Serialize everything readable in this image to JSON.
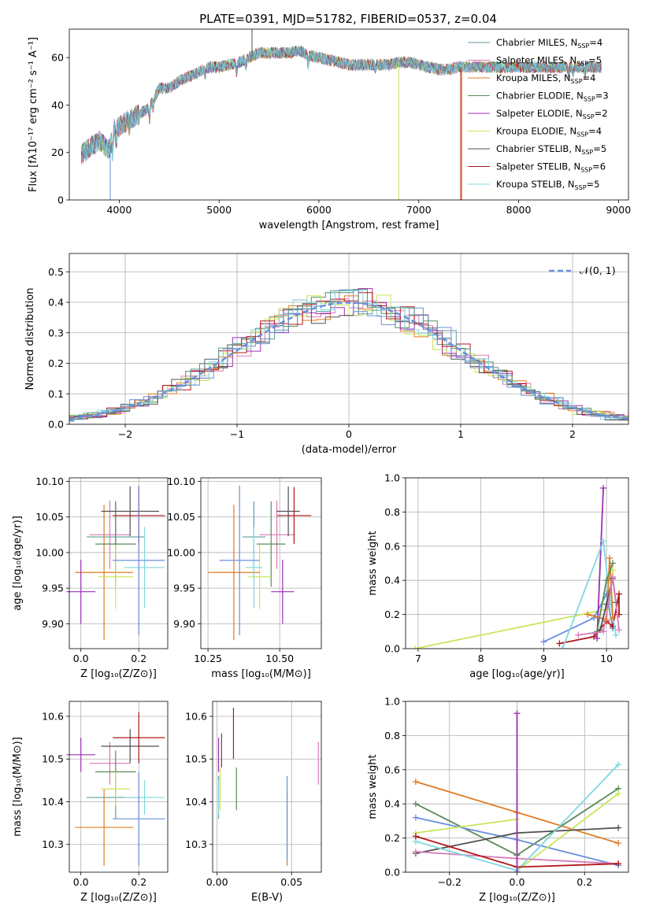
{
  "figure": {
    "title": "PLATE=0391, MJD=51782, FIBERID=0537, z=0.04"
  },
  "colors": [
    "#5f9ea0",
    "#d87ab8",
    "#e07b22",
    "#5a8a5a",
    "#9b30b5",
    "#c8e65a",
    "#505050",
    "#b01818",
    "#7fd8e0",
    "#6a8fdc"
  ],
  "chart_data": [
    {
      "id": "spectrum",
      "type": "line",
      "xlabel": "wavelength [Angstrom, rest frame]",
      "ylabel": "Flux [fλ10⁻¹⁷ erg cm⁻² s⁻¹ A⁻¹]",
      "xlim": [
        3500,
        9100
      ],
      "ylim": [
        0,
        72
      ],
      "xticks": [
        4000,
        5000,
        6000,
        7000,
        8000,
        9000
      ],
      "yticks": [
        0,
        20,
        40,
        60
      ],
      "legend_position": "top-right",
      "legend": [
        {
          "label": "Chabrier MILES, N",
          "sub": "SSP",
          "suffix": "=4",
          "color": "#5f9ea0"
        },
        {
          "label": "Salpeter MILES, N",
          "sub": "SSP",
          "suffix": "=5",
          "color": "#d87ab8"
        },
        {
          "label": "Kroupa MILES, N",
          "sub": "SSP",
          "suffix": "=4",
          "color": "#e07b22"
        },
        {
          "label": "Chabrier ELODIE, N",
          "sub": "SSP",
          "suffix": "=3",
          "color": "#5a8a5a"
        },
        {
          "label": "Salpeter ELODIE, N",
          "sub": "SSP",
          "suffix": "=2",
          "color": "#9b30b5"
        },
        {
          "label": "Kroupa ELODIE, N",
          "sub": "SSP",
          "suffix": "=4",
          "color": "#c8e65a"
        },
        {
          "label": "Chabrier STELIB, N",
          "sub": "SSP",
          "suffix": "=5",
          "color": "#505050"
        },
        {
          "label": "Salpeter STELIB, N",
          "sub": "SSP",
          "suffix": "=6",
          "color": "#b01818"
        },
        {
          "label": "Kroupa STELIB, N",
          "sub": "SSP",
          "suffix": "=5",
          "color": "#7fd8e0"
        }
      ],
      "envelope": [
        [
          3620,
          19
        ],
        [
          3700,
          22
        ],
        [
          3800,
          25
        ],
        [
          3900,
          21
        ],
        [
          3950,
          30
        ],
        [
          4000,
          31
        ],
        [
          4100,
          34
        ],
        [
          4200,
          36
        ],
        [
          4300,
          39
        ],
        [
          4400,
          47
        ],
        [
          4500,
          47
        ],
        [
          4600,
          50
        ],
        [
          4700,
          52
        ],
        [
          4800,
          54
        ],
        [
          4900,
          56
        ],
        [
          5000,
          56
        ],
        [
          5100,
          57
        ],
        [
          5200,
          58
        ],
        [
          5300,
          60
        ],
        [
          5400,
          62
        ],
        [
          5500,
          62
        ],
        [
          5600,
          62
        ],
        [
          5700,
          62
        ],
        [
          5800,
          63
        ],
        [
          5900,
          61
        ],
        [
          6000,
          60
        ],
        [
          6100,
          59
        ],
        [
          6200,
          58
        ],
        [
          6300,
          57
        ],
        [
          6400,
          57
        ],
        [
          6500,
          57
        ],
        [
          6600,
          57
        ],
        [
          6700,
          57
        ],
        [
          6800,
          58
        ],
        [
          6900,
          58
        ],
        [
          7000,
          57
        ],
        [
          7100,
          56
        ],
        [
          7200,
          55
        ],
        [
          7300,
          55
        ],
        [
          7400,
          56
        ],
        [
          7500,
          56
        ],
        [
          7600,
          56
        ],
        [
          7700,
          56
        ],
        [
          7800,
          56
        ],
        [
          7900,
          56
        ],
        [
          8000,
          56
        ],
        [
          8100,
          56
        ],
        [
          8200,
          56
        ],
        [
          8300,
          56
        ],
        [
          8400,
          56
        ],
        [
          8500,
          56
        ],
        [
          8600,
          56
        ],
        [
          8700,
          56
        ],
        [
          8800,
          56
        ]
      ],
      "absorption_lines": [
        [
          3934,
          -7
        ],
        [
          3969,
          -6
        ],
        [
          4101,
          -3
        ],
        [
          4304,
          -5
        ],
        [
          4340,
          -3
        ],
        [
          4861,
          -3
        ],
        [
          5175,
          -4
        ],
        [
          5270,
          -3
        ],
        [
          5892,
          -4
        ],
        [
          6563,
          -2
        ],
        [
          8500,
          -3
        ],
        [
          8545,
          -3
        ],
        [
          8665,
          -3
        ]
      ],
      "spikes": [
        [
          3910,
          0,
          "#6a8fdc"
        ],
        [
          5330,
          40,
          "#505050"
        ],
        [
          6800,
          0,
          "#c8e65a"
        ],
        [
          7430,
          0,
          "#e07b22"
        ],
        [
          7420,
          0,
          "#b01818"
        ]
      ]
    },
    {
      "id": "residuals",
      "type": "histogram",
      "xlabel": "(data-model)/error",
      "ylabel": "Normed distribution",
      "xlim": [
        -2.5,
        2.5
      ],
      "ylim": [
        0,
        0.56
      ],
      "xticks": [
        -2,
        -1,
        0,
        1,
        2
      ],
      "yticks": [
        0,
        0.1,
        0.2,
        0.3,
        0.4,
        0.5
      ],
      "bin_width": 0.125,
      "grid": true,
      "legend_position": "top-right",
      "legend": [
        {
          "label": "𝒩(0, 1)",
          "color": "#6a8fdc",
          "style": "dashed"
        }
      ],
      "reference_curve": {
        "name": "N(0,1)",
        "mean": 0,
        "sigma": 1
      }
    },
    {
      "id": "age-vs-z",
      "type": "errorbar",
      "xlabel": "Z [log₁₀(Z/Z⊙)]",
      "ylabel": "age  [log₁₀(age/yr)]",
      "xlim": [
        -0.04,
        0.3
      ],
      "ylim": [
        9.865,
        10.105
      ],
      "xticks": [
        0.0,
        0.2
      ],
      "yticks": [
        9.9,
        9.95,
        10.0,
        10.05,
        10.1
      ],
      "grid": true,
      "points": [
        {
          "x": 0.12,
          "y": 10.022,
          "xerr": 0.1,
          "yerr": 0.05,
          "color": "#5f9ea0"
        },
        {
          "x": 0.1,
          "y": 10.025,
          "xerr": 0.07,
          "yerr": 0.048,
          "color": "#d87ab8"
        },
        {
          "x": 0.08,
          "y": 9.972,
          "xerr": 0.1,
          "yerr": 0.095,
          "color": "#e07b22"
        },
        {
          "x": 0.12,
          "y": 10.012,
          "xerr": 0.07,
          "yerr": 0.06,
          "color": "#5a8a5a"
        },
        {
          "x": 0.0,
          "y": 9.945,
          "xerr": 0.05,
          "yerr": 0.045,
          "color": "#9b30b5"
        },
        {
          "x": 0.12,
          "y": 9.966,
          "xerr": 0.06,
          "yerr": 0.045,
          "color": "#c8e65a"
        },
        {
          "x": 0.17,
          "y": 10.058,
          "xerr": 0.1,
          "yerr": 0.035,
          "color": "#505050"
        },
        {
          "x": 0.2,
          "y": 10.052,
          "xerr": 0.09,
          "yerr": 0.04,
          "color": "#b01818"
        },
        {
          "x": 0.22,
          "y": 9.979,
          "xerr": 0.07,
          "yerr": 0.057,
          "color": "#7fd8e0"
        },
        {
          "x": 0.2,
          "y": 9.989,
          "xerr": 0.09,
          "yerr": 0.105,
          "color": "#6a8fdc"
        }
      ]
    },
    {
      "id": "age-vs-mass",
      "type": "errorbar",
      "xlabel": "mass [log₁₀(M/M⊙)]",
      "ylabel": "",
      "xlim": [
        10.225,
        10.645
      ],
      "ylim": [
        9.865,
        10.105
      ],
      "xticks": [
        10.25,
        10.5
      ],
      "yticks": [
        9.9,
        9.95,
        10.0,
        10.05,
        10.1
      ],
      "grid": true,
      "points": [
        {
          "x": 10.41,
          "y": 10.022,
          "xerr": 0.04,
          "yerr": 0.05,
          "color": "#5f9ea0"
        },
        {
          "x": 10.49,
          "y": 10.025,
          "xerr": 0.06,
          "yerr": 0.048,
          "color": "#d87ab8"
        },
        {
          "x": 10.34,
          "y": 9.972,
          "xerr": 0.09,
          "yerr": 0.095,
          "color": "#e07b22"
        },
        {
          "x": 10.47,
          "y": 10.012,
          "xerr": 0.05,
          "yerr": 0.06,
          "color": "#5a8a5a"
        },
        {
          "x": 10.51,
          "y": 9.945,
          "xerr": 0.04,
          "yerr": 0.045,
          "color": "#9b30b5"
        },
        {
          "x": 10.43,
          "y": 9.966,
          "xerr": 0.04,
          "yerr": 0.045,
          "color": "#c8e65a"
        },
        {
          "x": 10.53,
          "y": 10.058,
          "xerr": 0.04,
          "yerr": 0.035,
          "color": "#505050"
        },
        {
          "x": 10.55,
          "y": 10.052,
          "xerr": 0.06,
          "yerr": 0.04,
          "color": "#b01818"
        },
        {
          "x": 10.41,
          "y": 9.979,
          "xerr": 0.03,
          "yerr": 0.057,
          "color": "#7fd8e0"
        },
        {
          "x": 10.36,
          "y": 9.989,
          "xerr": 0.07,
          "yerr": 0.105,
          "color": "#6a8fdc"
        }
      ]
    },
    {
      "id": "weight-vs-age",
      "type": "line",
      "xlabel": "age  [log₁₀(age/yr)]",
      "ylabel": "mass weight",
      "xlim": [
        6.8,
        10.35
      ],
      "ylim": [
        0,
        1.0
      ],
      "xticks": [
        7,
        8,
        9,
        10
      ],
      "yticks": [
        0.0,
        0.2,
        0.4,
        0.6,
        0.8,
        1.0
      ],
      "grid": true,
      "series": [
        {
          "color": "#c8e65a",
          "x": [
            6.95,
            10.0,
            10.05,
            10.1
          ],
          "y": [
            0.0,
            0.23,
            0.28,
            0.46
          ]
        },
        {
          "color": "#6a8fdc",
          "x": [
            9.0,
            9.8,
            10.0,
            10.1
          ],
          "y": [
            0.04,
            0.18,
            0.32,
            0.12
          ]
        },
        {
          "color": "#b01818",
          "x": [
            9.25,
            9.8,
            10.0,
            10.1,
            10.2,
            10.2
          ],
          "y": [
            0.03,
            0.07,
            0.16,
            0.13,
            0.32,
            0.2
          ]
        },
        {
          "color": "#9b30b5",
          "x": [
            9.85,
            9.95
          ],
          "y": [
            0.06,
            0.94
          ]
        },
        {
          "color": "#7fd8e0",
          "x": [
            9.3,
            9.95,
            10.05,
            10.15
          ],
          "y": [
            0.0,
            0.63,
            0.3,
            0.08
          ]
        },
        {
          "color": "#e07b22",
          "x": [
            9.7,
            10.0,
            10.05,
            10.1
          ],
          "y": [
            0.2,
            0.17,
            0.53,
            0.18
          ]
        },
        {
          "color": "#5a8a5a",
          "x": [
            9.85,
            10.0,
            10.1
          ],
          "y": [
            0.1,
            0.4,
            0.5
          ]
        },
        {
          "color": "#505050",
          "x": [
            9.9,
            10.0,
            10.1,
            10.15
          ],
          "y": [
            0.11,
            0.26,
            0.41,
            0.27
          ]
        },
        {
          "color": "#d87ab8",
          "x": [
            9.55,
            9.95,
            10.1,
            10.2
          ],
          "y": [
            0.08,
            0.1,
            0.42,
            0.11
          ]
        }
      ]
    },
    {
      "id": "mass-vs-z",
      "type": "errorbar",
      "xlabel": "Z [log₁₀(Z/Z⊙)]",
      "ylabel": "mass [log₁₀(M/M⊙)]",
      "xlim": [
        -0.04,
        0.3
      ],
      "ylim": [
        10.235,
        10.635
      ],
      "xticks": [
        0.0,
        0.2
      ],
      "yticks": [
        10.3,
        10.4,
        10.5,
        10.6
      ],
      "grid": true,
      "points": [
        {
          "x": 0.12,
          "y": 10.41,
          "xerr": 0.1,
          "yerr": 0.05,
          "color": "#5f9ea0"
        },
        {
          "x": 0.1,
          "y": 10.49,
          "xerr": 0.07,
          "yerr": 0.05,
          "color": "#d87ab8"
        },
        {
          "x": 0.08,
          "y": 10.34,
          "xerr": 0.1,
          "yerr": 0.09,
          "color": "#e07b22"
        },
        {
          "x": 0.12,
          "y": 10.47,
          "xerr": 0.07,
          "yerr": 0.05,
          "color": "#5a8a5a"
        },
        {
          "x": 0.0,
          "y": 10.51,
          "xerr": 0.05,
          "yerr": 0.04,
          "color": "#9b30b5"
        },
        {
          "x": 0.12,
          "y": 10.43,
          "xerr": 0.05,
          "yerr": 0.04,
          "color": "#c8e65a"
        },
        {
          "x": 0.17,
          "y": 10.53,
          "xerr": 0.1,
          "yerr": 0.04,
          "color": "#505050"
        },
        {
          "x": 0.2,
          "y": 10.55,
          "xerr": 0.09,
          "yerr": 0.06,
          "color": "#b01818"
        },
        {
          "x": 0.22,
          "y": 10.41,
          "xerr": 0.07,
          "yerr": 0.04,
          "color": "#7fd8e0"
        },
        {
          "x": 0.2,
          "y": 10.36,
          "xerr": 0.09,
          "yerr": 0.11,
          "color": "#6a8fdc"
        }
      ]
    },
    {
      "id": "mass-vs-ebv",
      "type": "errorbar",
      "xlabel": "E(B-V)",
      "ylabel": "",
      "xlim": [
        -0.003,
        0.07
      ],
      "ylim": [
        10.235,
        10.635
      ],
      "xticks": [
        0.0,
        0.05
      ],
      "yticks": [
        10.3,
        10.4,
        10.5,
        10.6
      ],
      "grid": true,
      "points": [
        {
          "x": 0.001,
          "y": 10.41,
          "xerr": 0,
          "yerr": 0.05,
          "color": "#5f9ea0"
        },
        {
          "x": 0.068,
          "y": 10.49,
          "xerr": 0,
          "yerr": 0.05,
          "color": "#d87ab8"
        },
        {
          "x": 0.047,
          "y": 10.34,
          "xerr": 0,
          "yerr": 0.09,
          "color": "#e07b22"
        },
        {
          "x": 0.013,
          "y": 10.43,
          "xerr": 0,
          "yerr": 0.05,
          "color": "#5a8a5a"
        },
        {
          "x": 0.001,
          "y": 10.51,
          "xerr": 0,
          "yerr": 0.04,
          "color": "#9b30b5"
        },
        {
          "x": 0.002,
          "y": 10.43,
          "xerr": 0,
          "yerr": 0.05,
          "color": "#c8e65a"
        },
        {
          "x": 0.003,
          "y": 10.52,
          "xerr": 0,
          "yerr": 0.04,
          "color": "#505050"
        },
        {
          "x": 0.011,
          "y": 10.56,
          "xerr": 0,
          "yerr": 0.06,
          "color": "#b01818"
        },
        {
          "x": 0.001,
          "y": 10.41,
          "xerr": 0,
          "yerr": 0.04,
          "color": "#7fd8e0"
        },
        {
          "x": 0.047,
          "y": 10.36,
          "xerr": 0,
          "yerr": 0.1,
          "color": "#6a8fdc"
        }
      ]
    },
    {
      "id": "weight-vs-z",
      "type": "line",
      "xlabel": "Z [log₁₀(Z/Z⊙)]",
      "ylabel": "mass weight",
      "xlim": [
        -0.33,
        0.33
      ],
      "ylim": [
        0,
        1.0
      ],
      "xticks": [
        -0.2,
        0.0,
        0.2
      ],
      "yticks": [
        0.0,
        0.2,
        0.4,
        0.6,
        0.8,
        1.0
      ],
      "grid": true,
      "series": [
        {
          "color": "#e07b22",
          "x": [
            -0.3,
            0.0,
            0.3
          ],
          "y": [
            0.53,
            0.35,
            0.17
          ]
        },
        {
          "color": "#5a8a5a",
          "x": [
            -0.3,
            0.0,
            0.3
          ],
          "y": [
            0.4,
            0.1,
            0.49
          ]
        },
        {
          "color": "#6a8fdc",
          "x": [
            -0.3,
            0.0,
            0.3
          ],
          "y": [
            0.32,
            0.19,
            0.04
          ]
        },
        {
          "color": "#c8e65a",
          "x": [
            -0.3,
            0.0,
            0.0,
            0.3
          ],
          "y": [
            0.23,
            0.31,
            0.01,
            0.46
          ]
        },
        {
          "color": "#505050",
          "x": [
            -0.3,
            0.0,
            0.3
          ],
          "y": [
            0.11,
            0.23,
            0.26
          ]
        },
        {
          "color": "#d87ab8",
          "x": [
            -0.3,
            0.0,
            0.3
          ],
          "y": [
            0.12,
            0.08,
            0.05
          ]
        },
        {
          "color": "#7fd8e0",
          "x": [
            -0.3,
            0.0,
            0.3
          ],
          "y": [
            0.18,
            0.01,
            0.63
          ]
        },
        {
          "color": "#b01818",
          "x": [
            -0.3,
            0.0,
            0.3
          ],
          "y": [
            0.21,
            0.03,
            0.05
          ]
        },
        {
          "color": "#9b30b5",
          "x": [
            0.0,
            0.0
          ],
          "y": [
            0.0,
            0.93
          ]
        }
      ]
    }
  ]
}
